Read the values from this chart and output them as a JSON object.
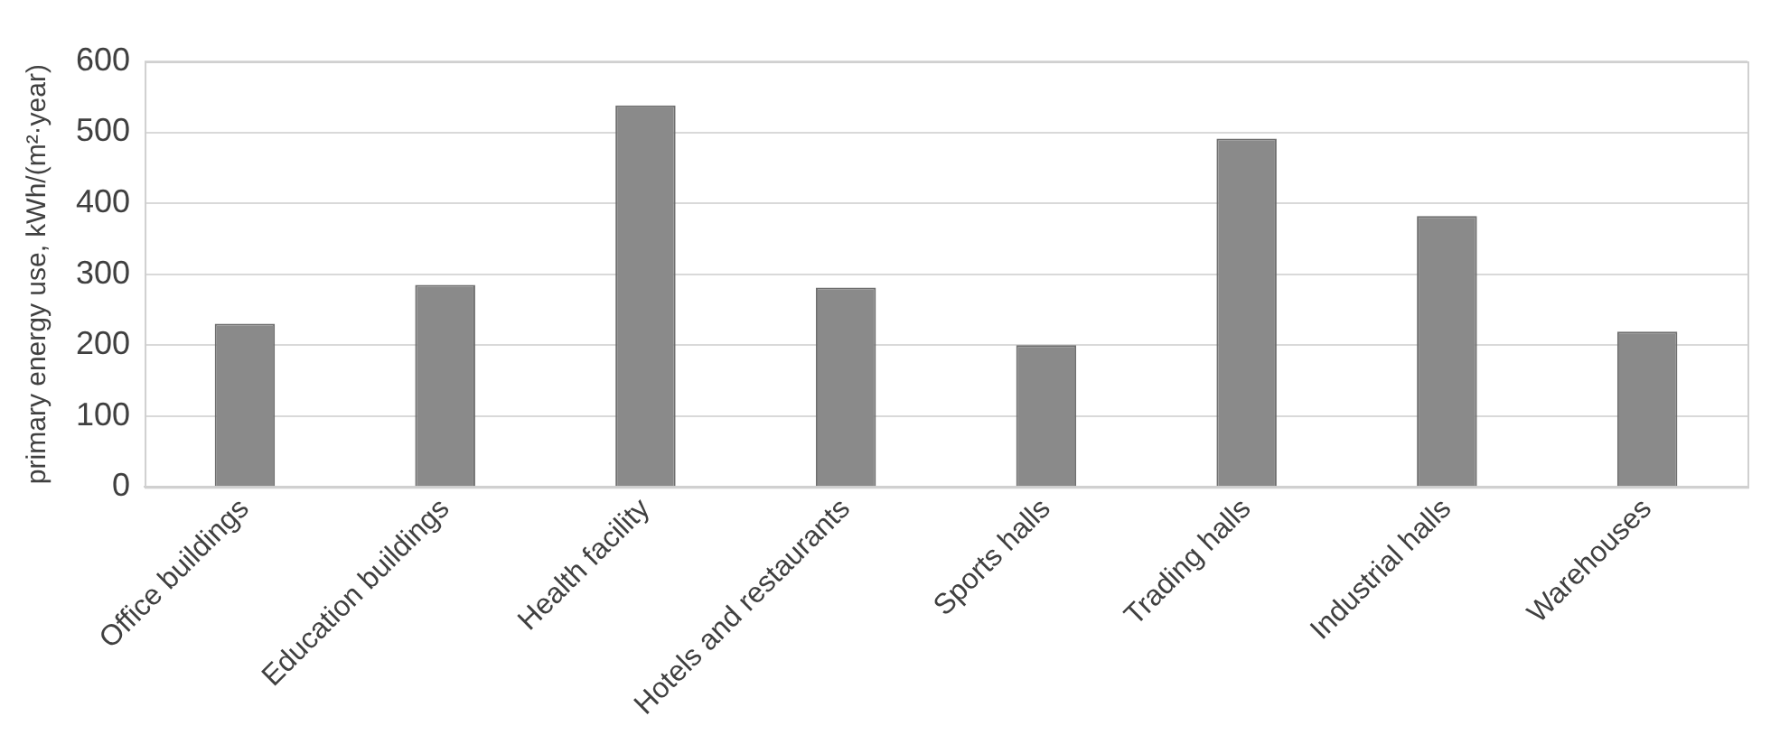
{
  "chart_data": {
    "type": "bar",
    "ylabel": "primary energy use, kWh/(m²·year)",
    "categories": [
      "Office buildings",
      "Education buildings",
      "Health facility",
      "Hotels and restaurants",
      "Sports halls",
      "Trading halls",
      "Industrial halls",
      "Warehouses"
    ],
    "values": [
      230,
      285,
      538,
      281,
      200,
      491,
      382,
      219
    ],
    "color": "#8a8a8a",
    "ylim": [
      0,
      600
    ],
    "yticks": [
      0,
      100,
      200,
      300,
      400,
      500,
      600
    ],
    "grid": "y"
  }
}
